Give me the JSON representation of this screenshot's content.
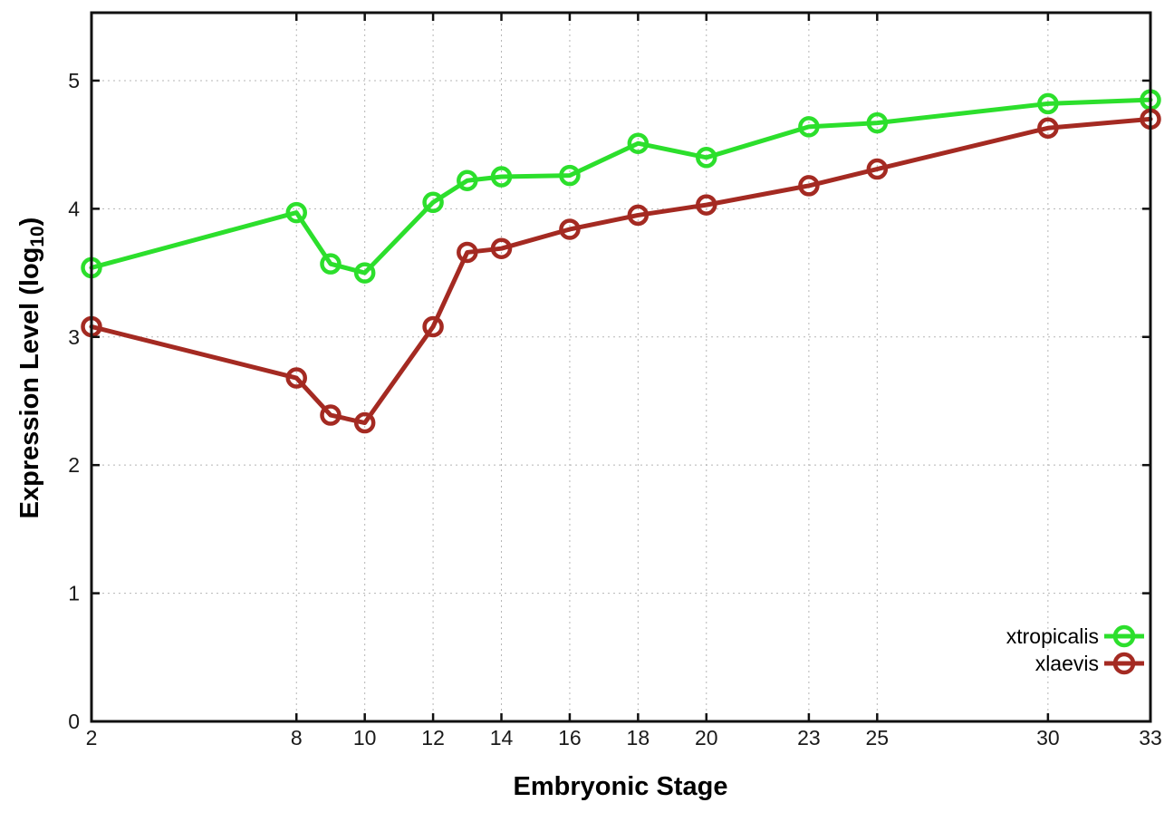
{
  "chart_data": {
    "type": "line",
    "title": "",
    "xlabel": "Embryonic Stage",
    "ylabel": "Expression Level (log10)",
    "ylabel_parts": {
      "prefix": "Expression Level (log",
      "sub": "10",
      "suffix": ")"
    },
    "xlim": [
      2,
      33
    ],
    "ylim": [
      0,
      5.53
    ],
    "grid": true,
    "legend_position": "bottom-right-inside",
    "x_ticks": [
      2,
      8,
      10,
      12,
      14,
      16,
      18,
      20,
      23,
      25,
      30,
      33
    ],
    "x_tick_labels": [
      "2",
      "8",
      "10",
      "12",
      "14",
      "16",
      "18",
      "20",
      "23",
      "25",
      "30",
      "33"
    ],
    "y_ticks": [
      0,
      1,
      2,
      3,
      4,
      5
    ],
    "y_tick_labels": [
      "0",
      "1",
      "2",
      "3",
      "4",
      "5"
    ],
    "x": [
      2,
      8,
      9,
      10,
      12,
      13,
      14,
      16,
      18,
      20,
      23,
      25,
      30,
      33
    ],
    "series": [
      {
        "name": "xtropicalis",
        "color": "#2cdf2c",
        "values": [
          3.54,
          3.97,
          3.57,
          3.5,
          4.05,
          4.22,
          4.25,
          4.26,
          4.51,
          4.4,
          4.64,
          4.67,
          4.82,
          4.85
        ]
      },
      {
        "name": "xlaevis",
        "color": "#a42a22",
        "values": [
          3.08,
          2.68,
          2.39,
          2.33,
          3.08,
          3.66,
          3.69,
          3.84,
          3.95,
          4.03,
          4.18,
          4.31,
          4.63,
          4.7
        ]
      }
    ],
    "colors": {
      "background": "#ffffff",
      "axis": "#111111",
      "grid": "#b5b5b5",
      "tick_text": "#1a1a1a",
      "legend_text": "#000000"
    }
  }
}
